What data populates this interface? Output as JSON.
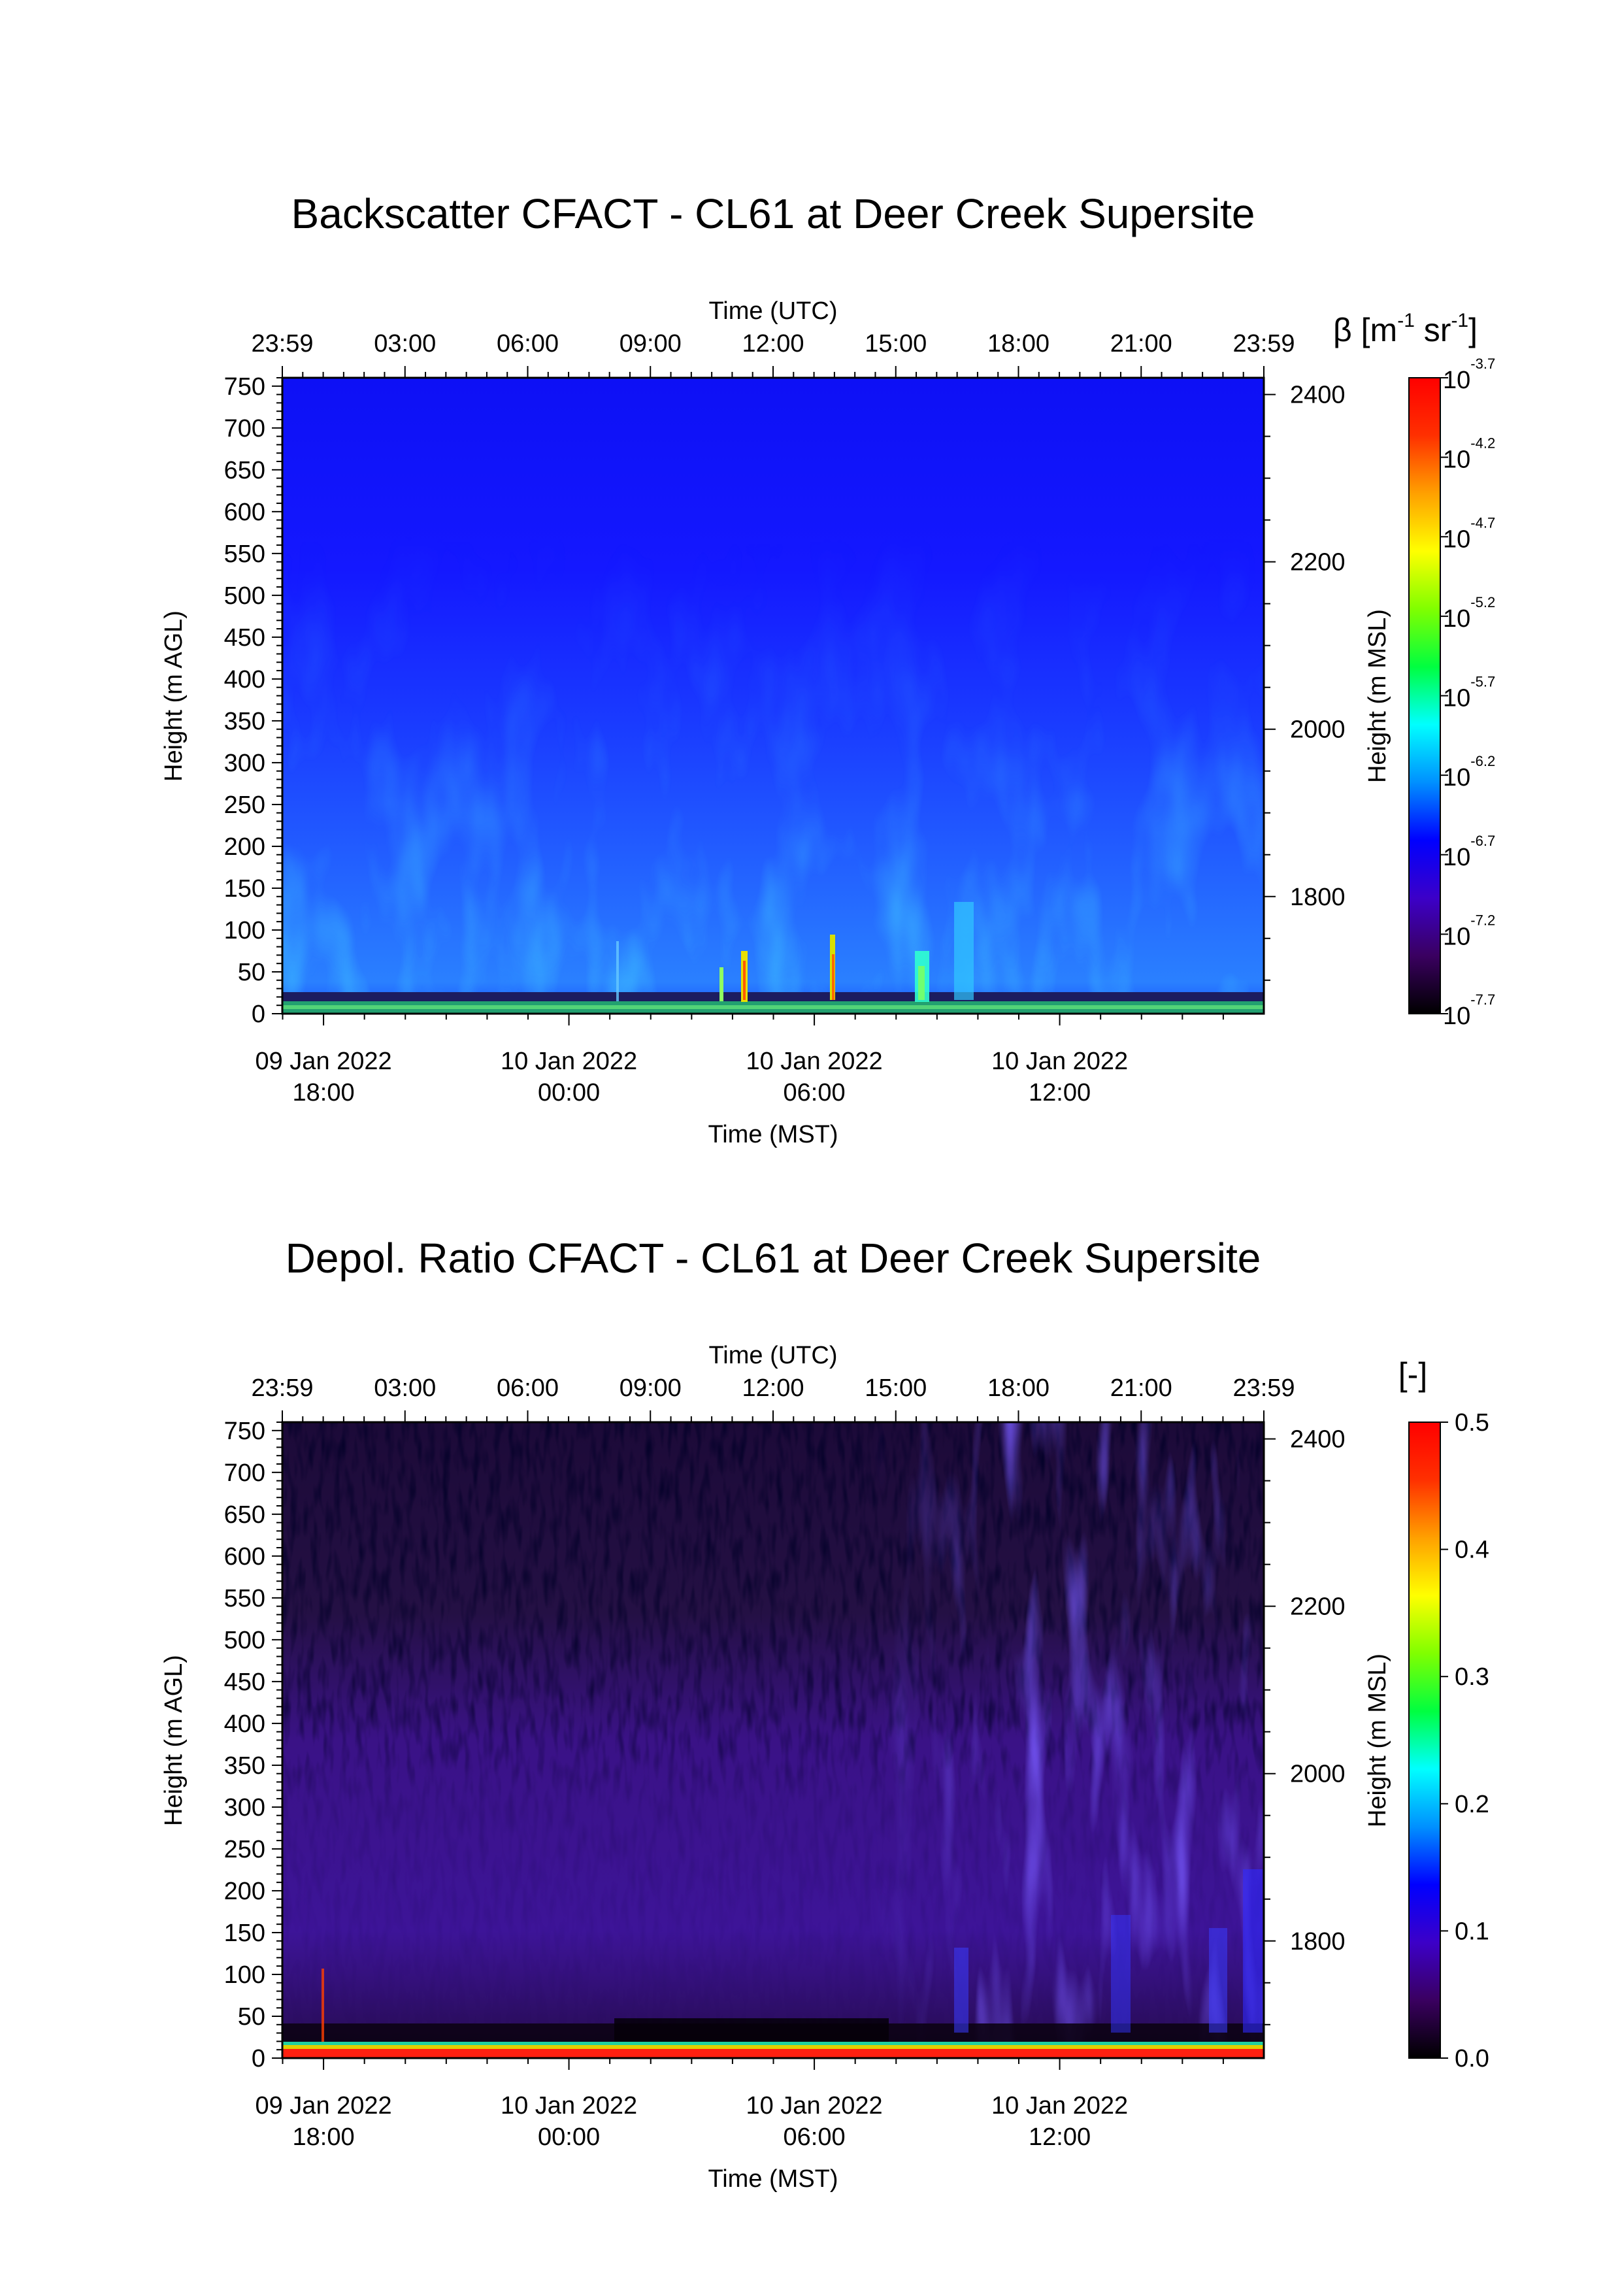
{
  "chart_data": [
    {
      "type": "heatmap",
      "title": "Backscatter CFACT - CL61 at Deer Creek Supersite",
      "top_axis": {
        "label": "Time (UTC)",
        "tick_labels": [
          "23:59",
          "03:00",
          "06:00",
          "09:00",
          "12:00",
          "15:00",
          "18:00",
          "21:00",
          "23:59"
        ]
      },
      "bottom_axis": {
        "label": "Time (MST)",
        "ticks": [
          {
            "line1": "09 Jan 2022",
            "line2": "18:00"
          },
          {
            "line1": "10 Jan 2022",
            "line2": "00:00"
          },
          {
            "line1": "10 Jan 2022",
            "line2": "06:00"
          },
          {
            "line1": "10 Jan 2022",
            "line2": "12:00"
          }
        ]
      },
      "left_axis": {
        "label": "Height (m AGL)",
        "ylim": [
          0,
          760
        ],
        "tick_values": [
          0,
          50,
          100,
          150,
          200,
          250,
          300,
          350,
          400,
          450,
          500,
          550,
          600,
          650,
          700,
          750
        ]
      },
      "right_axis": {
        "label": "Height (m MSL)",
        "tick_values": [
          1800,
          2000,
          2200,
          2400
        ]
      },
      "colorbar": {
        "label_prefix": "β [m",
        "label_exp1": "-1",
        "label_mid": " sr",
        "label_exp2": "-1",
        "label_suffix": "]",
        "scale": "log",
        "ticks": [
          {
            "base": "10",
            "exp": "-3.7"
          },
          {
            "base": "10",
            "exp": "-4.2"
          },
          {
            "base": "10",
            "exp": "-4.7"
          },
          {
            "base": "10",
            "exp": "-5.2"
          },
          {
            "base": "10",
            "exp": "-5.7"
          },
          {
            "base": "10",
            "exp": "-6.2"
          },
          {
            "base": "10",
            "exp": "-6.7"
          },
          {
            "base": "10",
            "exp": "-7.2"
          },
          {
            "base": "10",
            "exp": "-7.7"
          }
        ],
        "colormap": [
          "#000000",
          "#3a0060",
          "#3c00c8",
          "#0000ff",
          "#0090ff",
          "#00ffff",
          "#00ff40",
          "#80ff00",
          "#ffff00",
          "#ffa000",
          "#ff3000",
          "#ff0000"
        ]
      },
      "field_description_colors": {
        "background": "#1414ff",
        "plume": "#2a78ff",
        "surface": "#00ff90"
      }
    },
    {
      "type": "heatmap",
      "title": "Depol. Ratio CFACT - CL61 at Deer Creek Supersite",
      "top_axis": {
        "label": "Time (UTC)",
        "tick_labels": [
          "23:59",
          "03:00",
          "06:00",
          "09:00",
          "12:00",
          "15:00",
          "18:00",
          "21:00",
          "23:59"
        ]
      },
      "bottom_axis": {
        "label": "Time (MST)",
        "ticks": [
          {
            "line1": "09 Jan 2022",
            "line2": "18:00"
          },
          {
            "line1": "10 Jan 2022",
            "line2": "00:00"
          },
          {
            "line1": "10 Jan 2022",
            "line2": "06:00"
          },
          {
            "line1": "10 Jan 2022",
            "line2": "12:00"
          }
        ]
      },
      "left_axis": {
        "label": "Height (m AGL)",
        "ylim": [
          0,
          760
        ],
        "tick_values": [
          0,
          50,
          100,
          150,
          200,
          250,
          300,
          350,
          400,
          450,
          500,
          550,
          600,
          650,
          700,
          750
        ]
      },
      "right_axis": {
        "label": "Height (m MSL)",
        "tick_values": [
          1800,
          2000,
          2200,
          2400
        ]
      },
      "colorbar": {
        "label": "[-]",
        "scale": "linear",
        "tick_values": [
          "0.5",
          "0.4",
          "0.3",
          "0.2",
          "0.1",
          "0.0"
        ],
        "colormap": [
          "#000000",
          "#3a0060",
          "#3c00c8",
          "#0000ff",
          "#0090ff",
          "#00ffff",
          "#00ff40",
          "#80ff00",
          "#ffff00",
          "#ffa000",
          "#ff3000",
          "#ff0000"
        ]
      }
    }
  ]
}
